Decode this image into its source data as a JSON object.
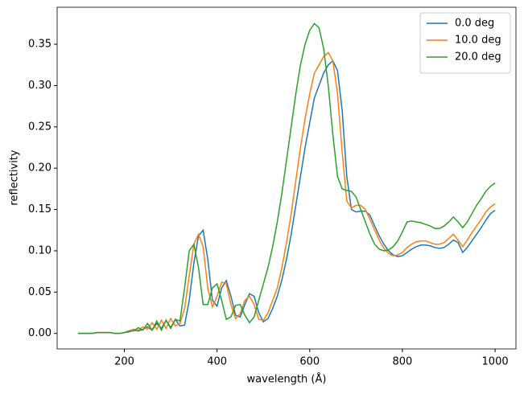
{
  "chart_data": {
    "type": "line",
    "xlabel": "wavelength (Å)",
    "ylabel": "reflectivity",
    "x": [
      100,
      110,
      120,
      130,
      140,
      150,
      160,
      170,
      180,
      190,
      200,
      210,
      220,
      230,
      240,
      250,
      260,
      270,
      280,
      290,
      300,
      310,
      320,
      330,
      340,
      350,
      360,
      370,
      380,
      390,
      400,
      410,
      420,
      430,
      440,
      450,
      460,
      470,
      480,
      490,
      500,
      510,
      520,
      530,
      540,
      550,
      560,
      570,
      580,
      590,
      600,
      610,
      620,
      630,
      640,
      650,
      660,
      670,
      680,
      690,
      700,
      710,
      720,
      730,
      740,
      750,
      760,
      770,
      780,
      790,
      800,
      810,
      820,
      830,
      840,
      850,
      860,
      870,
      880,
      890,
      900,
      910,
      920,
      930,
      940,
      950,
      960,
      970,
      980,
      990,
      1000
    ],
    "series": [
      {
        "name": "0.0 deg",
        "color": "#1f77b4",
        "values": [
          0,
          0,
          0,
          0,
          0.001,
          0.001,
          0.001,
          0.001,
          0,
          0,
          0.001,
          0.002,
          0.004,
          0.003,
          0.005,
          0.008,
          0.004,
          0.012,
          0.006,
          0.016,
          0.007,
          0.017,
          0.009,
          0.01,
          0.04,
          0.085,
          0.118,
          0.125,
          0.09,
          0.04,
          0.033,
          0.055,
          0.064,
          0.045,
          0.022,
          0.02,
          0.035,
          0.048,
          0.045,
          0.025,
          0.014,
          0.018,
          0.03,
          0.045,
          0.065,
          0.09,
          0.12,
          0.155,
          0.19,
          0.225,
          0.255,
          0.285,
          0.3,
          0.315,
          0.325,
          0.33,
          0.318,
          0.27,
          0.19,
          0.15,
          0.147,
          0.148,
          0.148,
          0.143,
          0.13,
          0.118,
          0.108,
          0.1,
          0.095,
          0.093,
          0.094,
          0.098,
          0.102,
          0.105,
          0.107,
          0.107,
          0.106,
          0.104,
          0.103,
          0.104,
          0.108,
          0.113,
          0.11,
          0.098,
          0.104,
          0.112,
          0.12,
          0.128,
          0.137,
          0.145,
          0.149
        ]
      },
      {
        "name": "10.0 deg",
        "color": "#ff7f0e",
        "values": [
          0,
          0,
          0,
          0,
          0.001,
          0.001,
          0.001,
          0.001,
          0,
          0,
          0.001,
          0.003,
          0.005,
          0.004,
          0.008,
          0.005,
          0.013,
          0.005,
          0.016,
          0.006,
          0.018,
          0.009,
          0.012,
          0.03,
          0.07,
          0.108,
          0.12,
          0.105,
          0.055,
          0.032,
          0.045,
          0.062,
          0.06,
          0.035,
          0.018,
          0.024,
          0.04,
          0.045,
          0.035,
          0.017,
          0.016,
          0.025,
          0.04,
          0.055,
          0.08,
          0.11,
          0.145,
          0.185,
          0.225,
          0.26,
          0.29,
          0.315,
          0.325,
          0.335,
          0.34,
          0.33,
          0.29,
          0.22,
          0.16,
          0.152,
          0.155,
          0.155,
          0.15,
          0.138,
          0.125,
          0.113,
          0.103,
          0.097,
          0.094,
          0.095,
          0.098,
          0.104,
          0.108,
          0.111,
          0.112,
          0.112,
          0.11,
          0.108,
          0.108,
          0.11,
          0.115,
          0.12,
          0.113,
          0.105,
          0.113,
          0.122,
          0.13,
          0.138,
          0.147,
          0.153,
          0.157
        ]
      },
      {
        "name": "20.0 deg",
        "color": "#2ca02c",
        "values": [
          0,
          0,
          0,
          0,
          0.001,
          0.001,
          0.001,
          0.001,
          0,
          0,
          0.001,
          0.003,
          0.003,
          0.007,
          0.004,
          0.012,
          0.004,
          0.015,
          0.004,
          0.016,
          0.006,
          0.017,
          0.015,
          0.055,
          0.1,
          0.108,
          0.08,
          0.035,
          0.035,
          0.055,
          0.06,
          0.04,
          0.017,
          0.02,
          0.034,
          0.035,
          0.022,
          0.013,
          0.02,
          0.04,
          0.06,
          0.08,
          0.105,
          0.135,
          0.17,
          0.21,
          0.25,
          0.29,
          0.325,
          0.35,
          0.367,
          0.375,
          0.37,
          0.345,
          0.3,
          0.24,
          0.19,
          0.175,
          0.173,
          0.172,
          0.165,
          0.15,
          0.135,
          0.12,
          0.108,
          0.102,
          0.1,
          0.101,
          0.105,
          0.112,
          0.123,
          0.135,
          0.136,
          0.135,
          0.134,
          0.132,
          0.13,
          0.127,
          0.127,
          0.13,
          0.135,
          0.141,
          0.135,
          0.128,
          0.135,
          0.145,
          0.155,
          0.163,
          0.172,
          0.178,
          0.182
        ]
      }
    ],
    "xlim": [
      55,
      1045
    ],
    "ylim": [
      -0.0188,
      0.3948
    ],
    "xticks": [
      200,
      400,
      600,
      800,
      1000
    ],
    "yticks": [
      {
        "value": 0,
        "label": "0.00"
      },
      {
        "value": 0.05,
        "label": "0.05"
      },
      {
        "value": 0.1,
        "label": "0.10"
      },
      {
        "value": 0.15,
        "label": "0.15"
      },
      {
        "value": 0.2,
        "label": "0.20"
      },
      {
        "value": 0.25,
        "label": "0.25"
      },
      {
        "value": 0.3,
        "label": "0.30"
      },
      {
        "value": 0.35,
        "label": "0.35"
      }
    ],
    "grid": false,
    "legend": "upper right"
  }
}
